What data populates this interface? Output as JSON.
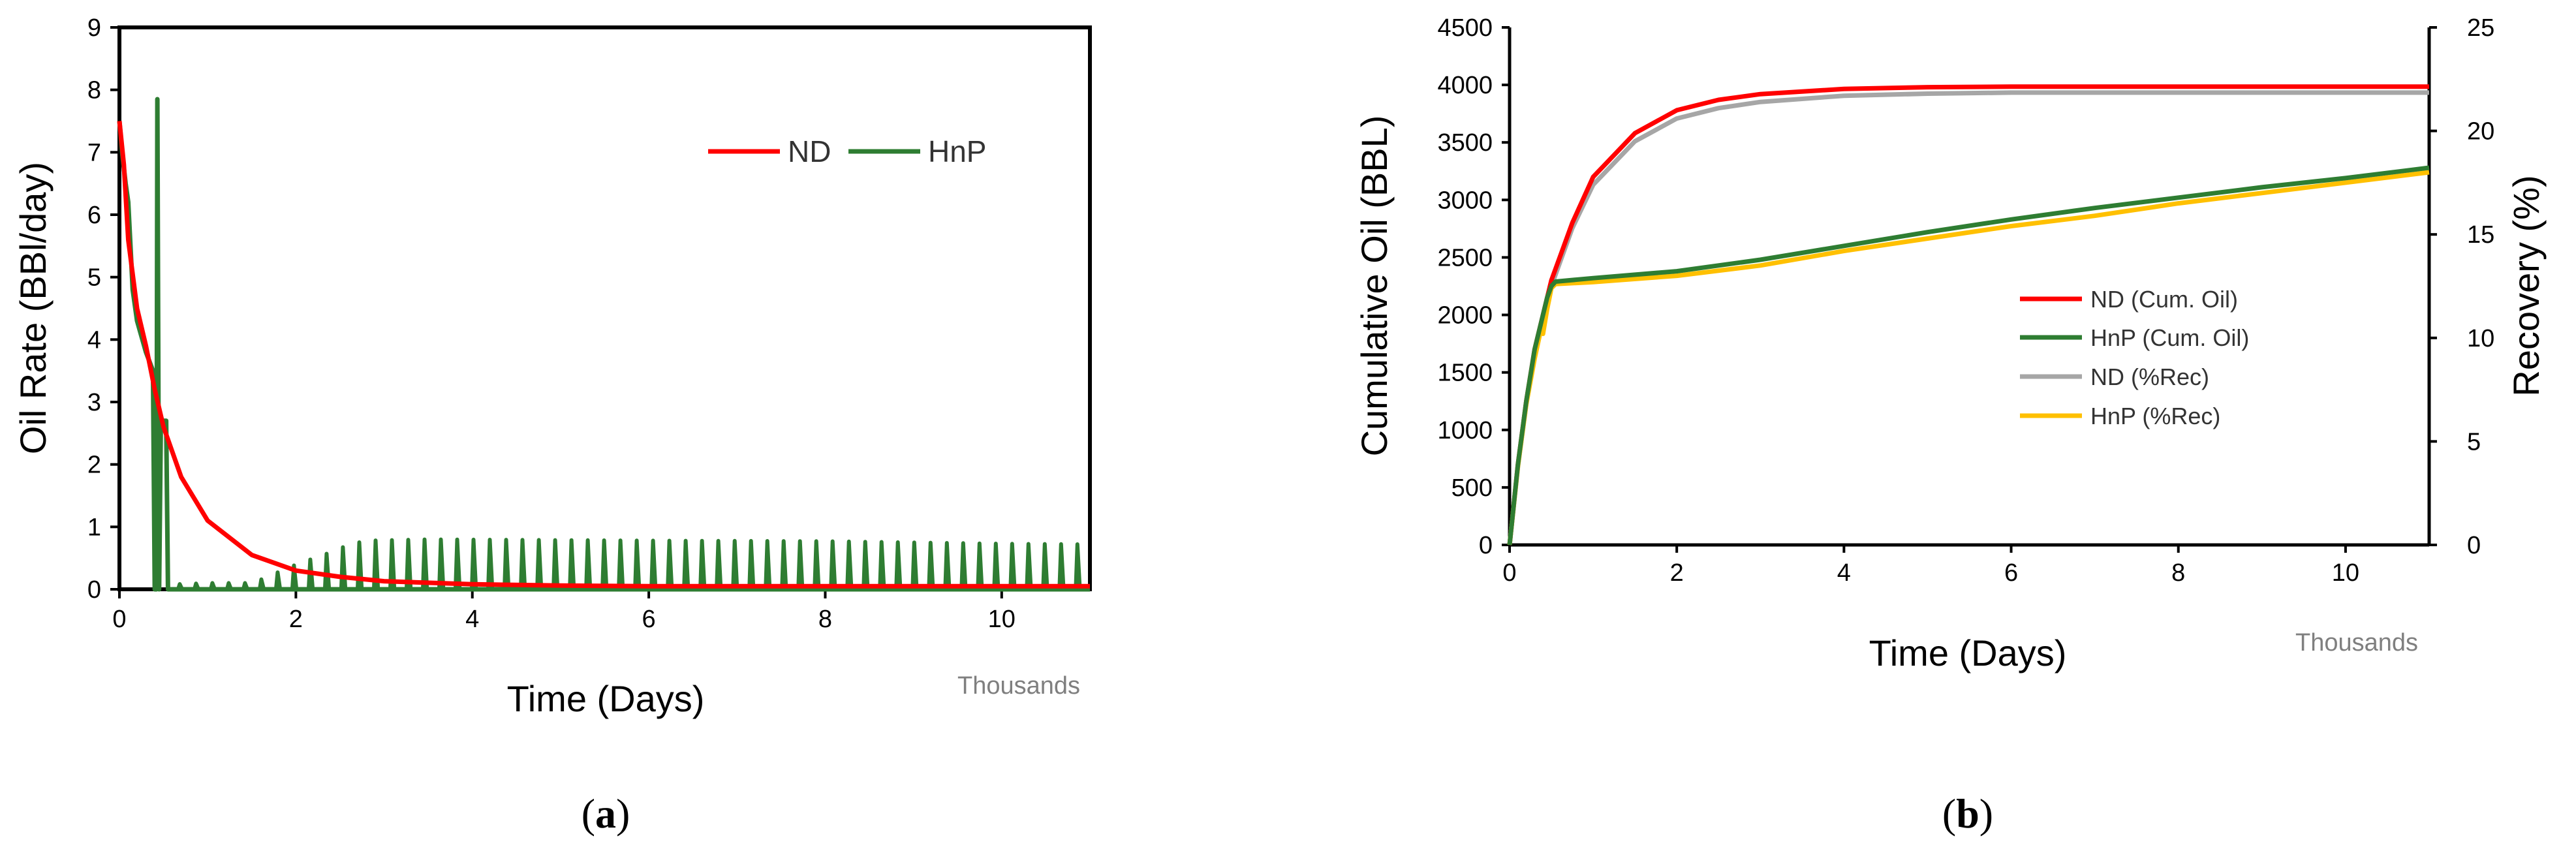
{
  "chart_data": [
    {
      "type": "line",
      "panel_label": "a",
      "xlabel": "Time (Days)",
      "x_units_label": "Thousands",
      "ylabel": "Oil Rate (BBl/day)",
      "xlim": [
        0,
        11
      ],
      "ylim": [
        0,
        9
      ],
      "xticks": [
        0,
        2,
        4,
        6,
        8,
        10
      ],
      "yticks": [
        0,
        1,
        2,
        3,
        4,
        5,
        6,
        7,
        8,
        9
      ],
      "legend_position": "top-right",
      "series": [
        {
          "name": "ND",
          "color": "#ff0000",
          "x": [
            0,
            0.05,
            0.1,
            0.2,
            0.3,
            0.4,
            0.5,
            0.7,
            1.0,
            1.5,
            2.0,
            2.5,
            3.0,
            4.0,
            5.0,
            6.0,
            8.0,
            10.0,
            11.0
          ],
          "y": [
            7.5,
            6.8,
            5.6,
            4.5,
            3.9,
            3.2,
            2.6,
            1.8,
            1.1,
            0.55,
            0.3,
            0.2,
            0.13,
            0.08,
            0.06,
            0.05,
            0.05,
            0.05,
            0.05
          ]
        },
        {
          "name": "HnP",
          "color": "#2e7d32",
          "x": [
            0,
            0.03,
            0.07,
            0.1,
            0.15,
            0.2,
            0.3,
            0.38,
            0.4,
            0.42,
            0.43,
            0.45,
            0.47,
            0.5,
            0.53,
            0.55,
            0.57,
            0.6,
            11.0
          ],
          "y": [
            7.5,
            7.0,
            6.5,
            6.2,
            4.8,
            4.3,
            3.8,
            3.5,
            0,
            0,
            7.85,
            0,
            2.7,
            2.7,
            2.7,
            0,
            0,
            0,
            0
          ],
          "cycles": {
            "start": 0.6,
            "end": 10.95,
            "period": 0.185,
            "peaks_x": [
              0.6,
              1.0,
              1.5,
              2.0,
              2.2,
              2.4,
              2.6,
              2.8,
              3.5,
              6.0,
              8.0,
              10.0,
              10.95
            ],
            "peaks_y": [
              0.08,
              0.1,
              0.1,
              0.4,
              0.5,
              0.6,
              0.72,
              0.78,
              0.8,
              0.78,
              0.77,
              0.73,
              0.72
            ]
          }
        }
      ]
    },
    {
      "type": "line",
      "panel_label": "b",
      "xlabel": "Time (Days)",
      "x_units_label": "Thousands",
      "ylabel": "Cumulative Oil (BBL)",
      "y2label": "Recovery (%)",
      "xlim": [
        0,
        11
      ],
      "ylim": [
        0,
        4500
      ],
      "y2lim": [
        0,
        25
      ],
      "xticks": [
        0,
        2,
        4,
        6,
        8,
        10
      ],
      "yticks": [
        0,
        500,
        1000,
        1500,
        2000,
        2500,
        3000,
        3500,
        4000,
        4500
      ],
      "y2ticks": [
        0,
        5,
        10,
        15,
        20,
        25
      ],
      "legend_position": "center-right",
      "series": [
        {
          "name": "ND (Cum. Oil)",
          "color": "#ff0000",
          "axis": "left",
          "x": [
            0,
            0.1,
            0.2,
            0.3,
            0.5,
            0.75,
            1.0,
            1.5,
            2.0,
            2.5,
            3.0,
            4.0,
            5.0,
            6.0,
            8.0,
            11.0
          ],
          "y": [
            0,
            700,
            1250,
            1700,
            2300,
            2800,
            3200,
            3580,
            3780,
            3870,
            3920,
            3965,
            3980,
            3985,
            3985,
            3985
          ]
        },
        {
          "name": "HnP (Cum. Oil)",
          "color": "#2e7d32",
          "axis": "left",
          "x": [
            0,
            0.1,
            0.2,
            0.3,
            0.4,
            0.45,
            0.5,
            0.55,
            1.0,
            2.0,
            3.0,
            4.0,
            5.0,
            6.0,
            7.0,
            8.0,
            9.0,
            10.0,
            11.0
          ],
          "y": [
            0,
            700,
            1250,
            1700,
            2000,
            2150,
            2250,
            2290,
            2320,
            2380,
            2480,
            2600,
            2720,
            2830,
            2930,
            3020,
            3110,
            3190,
            3280
          ]
        },
        {
          "name": "ND (%Rec)",
          "color": "#a6a6a6",
          "axis": "right",
          "x": [
            0,
            0.1,
            0.2,
            0.3,
            0.5,
            0.75,
            1.0,
            1.5,
            2.0,
            2.5,
            3.0,
            4.0,
            5.0,
            6.0,
            8.0,
            11.0
          ],
          "y": [
            0,
            3.8,
            6.8,
            9.2,
            12.5,
            15.3,
            17.4,
            19.5,
            20.6,
            21.1,
            21.4,
            21.7,
            21.8,
            21.85,
            21.85,
            21.85
          ]
        },
        {
          "name": "HnP (%Rec)",
          "color": "#ffc000",
          "axis": "right",
          "x": [
            0,
            0.1,
            0.2,
            0.3,
            0.38,
            0.4,
            0.45,
            0.48,
            0.5,
            0.55,
            1.0,
            2.0,
            3.0,
            4.0,
            5.0,
            6.0,
            7.0,
            8.0,
            9.0,
            10.0,
            11.0
          ],
          "y": [
            0,
            3.8,
            6.8,
            9.0,
            10.5,
            10.2,
            11.4,
            12.0,
            12.4,
            12.6,
            12.7,
            13.0,
            13.5,
            14.2,
            14.8,
            15.4,
            15.9,
            16.5,
            17.0,
            17.5,
            18.0
          ]
        }
      ]
    }
  ]
}
